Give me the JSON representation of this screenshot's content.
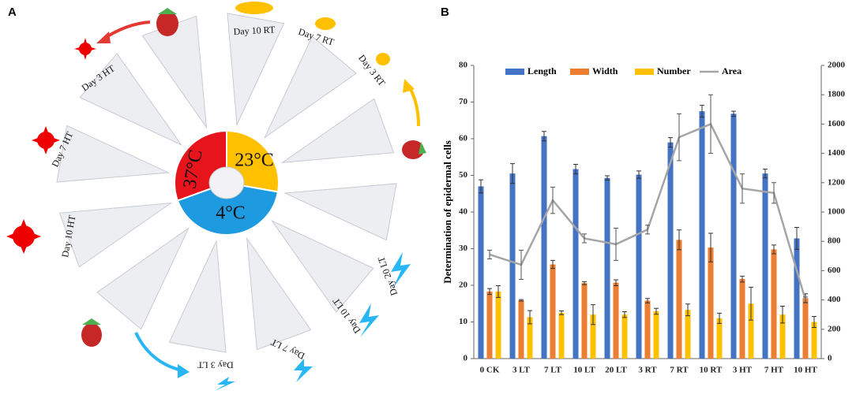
{
  "diagram": {
    "panel_label": "A",
    "center": [
      "37°C",
      "23°C",
      "4°C"
    ],
    "labels": [
      "Day 10 RT",
      "Day 7 RT",
      "Day 3 RT",
      "Day 3 HT",
      "Day 7 HT",
      "Day 10 HT",
      "Day 20 LT",
      "Day 10 LT",
      "Day 7 LT",
      "Day 3 LT"
    ]
  },
  "chart_data": {
    "type": "bar",
    "panel_label": "B",
    "ylabel": "Determination of epidermal cells",
    "categories": [
      "0 CK",
      "3 LT",
      "7 LT",
      "10 LT",
      "20 LT",
      "3 RT",
      "7 RT",
      "10 RT",
      "3 HT",
      "7 HT",
      "10 HT"
    ],
    "series": [
      {
        "name": "Length",
        "color": "#4472c4",
        "values": [
          47,
          50.5,
          60.7,
          51.7,
          49.3,
          50.2,
          59,
          67.5,
          66.8,
          50.5,
          32.8
        ],
        "errors": [
          1.8,
          2.7,
          1.3,
          1.3,
          0.6,
          1,
          1.3,
          1.6,
          0.7,
          1.2,
          3
        ]
      },
      {
        "name": "Width",
        "color": "#ed7d31",
        "values": [
          18.3,
          15.9,
          25.7,
          20.6,
          20.7,
          15.8,
          32.4,
          30.3,
          21.7,
          29.8,
          16.5
        ],
        "errors": [
          0.8,
          0.2,
          1.1,
          0.4,
          0.8,
          0.6,
          2.7,
          3.9,
          0.8,
          1.2,
          1.2
        ]
      },
      {
        "name": "Number",
        "color": "#ffc000",
        "values": [
          18.3,
          11.3,
          12.5,
          12,
          12,
          12.9,
          13.3,
          11,
          15,
          12,
          10
        ],
        "errors": [
          1.6,
          1.8,
          0.5,
          2.7,
          0.8,
          0.8,
          1.6,
          1.4,
          4.5,
          2.3,
          1.5
        ]
      },
      {
        "name": "Area",
        "color": "#a5a5a5",
        "axis": "y2",
        "type": "line",
        "values": [
          710,
          640,
          1080,
          820,
          780,
          880,
          1510,
          1600,
          1160,
          1130,
          400
        ],
        "errors": [
          30,
          100,
          90,
          30,
          110,
          30,
          160,
          200,
          100,
          70,
          20
        ]
      }
    ],
    "ylim": [
      0,
      80
    ],
    "yticks": [
      0,
      10,
      20,
      30,
      40,
      50,
      60,
      70,
      80
    ],
    "y2lim": [
      0,
      2000
    ],
    "y2ticks": [
      0,
      200,
      400,
      600,
      800,
      1000,
      1200,
      1400,
      1600,
      1800,
      2000
    ],
    "legend": "top"
  }
}
